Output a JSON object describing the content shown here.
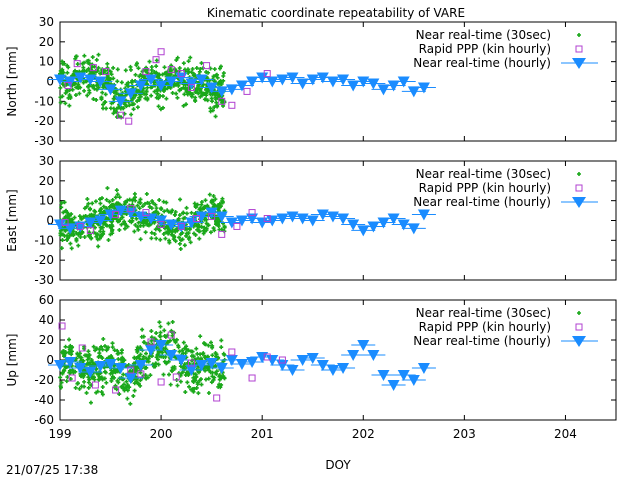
{
  "title": "Kinematic coordinate repeatability of VARE",
  "timestamp": "21/07/25 17:38",
  "colors": {
    "near30": "#1aa81a",
    "rapid": "#b040d0",
    "hourly": "#1a8cff"
  },
  "chart_data": [
    {
      "type": "scatter",
      "ylabel": "North [mm]",
      "xlim": [
        199,
        204.5
      ],
      "ylim": [
        -30,
        30
      ],
      "yticks": [
        -30,
        -20,
        -10,
        0,
        10,
        20,
        30
      ],
      "legend": "top-right",
      "series": [
        {
          "name": "Near real-time (30sec)",
          "spread": 10
        },
        {
          "name": "Rapid PPP (kin hourly)",
          "points": [
            [
              199.08,
              -2
            ],
            [
              199.17,
              9
            ],
            [
              199.33,
              7
            ],
            [
              199.45,
              5
            ],
            [
              199.6,
              -17
            ],
            [
              199.68,
              -20
            ],
            [
              199.85,
              5
            ],
            [
              199.95,
              11
            ],
            [
              200.0,
              15
            ],
            [
              200.1,
              6
            ],
            [
              200.2,
              4
            ],
            [
              200.3,
              -3
            ],
            [
              200.45,
              8
            ],
            [
              200.6,
              -10
            ],
            [
              200.7,
              -12
            ],
            [
              200.85,
              -5
            ],
            [
              201.05,
              4
            ]
          ]
        },
        {
          "name": "Near real-time (hourly)",
          "points": [
            [
              199.0,
              1
            ],
            [
              199.1,
              0
            ],
            [
              199.2,
              2
            ],
            [
              199.3,
              1
            ],
            [
              199.4,
              0
            ],
            [
              199.5,
              -4
            ],
            [
              199.6,
              -10
            ],
            [
              199.7,
              -6
            ],
            [
              199.8,
              -2
            ],
            [
              199.9,
              1
            ],
            [
              200.0,
              -2
            ],
            [
              200.1,
              0
            ],
            [
              200.2,
              2
            ],
            [
              200.3,
              -1
            ],
            [
              200.4,
              1
            ],
            [
              200.5,
              -3
            ],
            [
              200.6,
              -5
            ],
            [
              200.7,
              -4
            ],
            [
              200.8,
              -2
            ],
            [
              200.9,
              0
            ],
            [
              201.0,
              2
            ],
            [
              201.1,
              0
            ],
            [
              201.2,
              1
            ],
            [
              201.3,
              2
            ],
            [
              201.4,
              -1
            ],
            [
              201.5,
              1
            ],
            [
              201.6,
              2
            ],
            [
              201.7,
              0
            ],
            [
              201.8,
              1
            ],
            [
              201.9,
              -2
            ],
            [
              202.0,
              0
            ],
            [
              202.1,
              -1
            ],
            [
              202.2,
              -4
            ],
            [
              202.3,
              -2
            ],
            [
              202.4,
              0
            ],
            [
              202.5,
              -5
            ],
            [
              202.6,
              -3
            ]
          ]
        }
      ]
    },
    {
      "type": "scatter",
      "ylabel": "East [mm]",
      "xlim": [
        199,
        204.5
      ],
      "ylim": [
        -30,
        30
      ],
      "yticks": [
        -30,
        -20,
        -10,
        0,
        10,
        20,
        30
      ],
      "legend": "top-right",
      "series": [
        {
          "name": "Near real-time (30sec)",
          "spread": 9
        },
        {
          "name": "Rapid PPP (kin hourly)",
          "points": [
            [
              199.05,
              -1
            ],
            [
              199.2,
              -3
            ],
            [
              199.3,
              -5
            ],
            [
              199.55,
              3
            ],
            [
              199.7,
              6
            ],
            [
              199.85,
              4
            ],
            [
              200.0,
              -2
            ],
            [
              200.2,
              -3
            ],
            [
              200.35,
              1
            ],
            [
              200.5,
              2
            ],
            [
              200.6,
              -7
            ],
            [
              200.75,
              -3
            ],
            [
              200.9,
              4
            ],
            [
              201.05,
              1
            ]
          ]
        },
        {
          "name": "Near real-time (hourly)",
          "points": [
            [
              199.0,
              -2
            ],
            [
              199.1,
              -4
            ],
            [
              199.2,
              -3
            ],
            [
              199.3,
              -1
            ],
            [
              199.4,
              0
            ],
            [
              199.5,
              3
            ],
            [
              199.6,
              5
            ],
            [
              199.7,
              4
            ],
            [
              199.8,
              2
            ],
            [
              199.9,
              1
            ],
            [
              200.0,
              0
            ],
            [
              200.1,
              -2
            ],
            [
              200.2,
              -3
            ],
            [
              200.3,
              -1
            ],
            [
              200.4,
              2
            ],
            [
              200.5,
              4
            ],
            [
              200.6,
              2
            ],
            [
              200.7,
              -1
            ],
            [
              200.8,
              0
            ],
            [
              200.9,
              1
            ],
            [
              201.0,
              -1
            ],
            [
              201.1,
              0
            ],
            [
              201.2,
              1
            ],
            [
              201.3,
              2
            ],
            [
              201.4,
              1
            ],
            [
              201.5,
              0
            ],
            [
              201.6,
              3
            ],
            [
              201.7,
              2
            ],
            [
              201.8,
              1
            ],
            [
              201.9,
              -2
            ],
            [
              202.0,
              -5
            ],
            [
              202.1,
              -3
            ],
            [
              202.2,
              -1
            ],
            [
              202.3,
              1
            ],
            [
              202.4,
              -2
            ],
            [
              202.5,
              -4
            ],
            [
              202.6,
              3
            ]
          ]
        }
      ]
    },
    {
      "type": "scatter",
      "ylabel": "Up [mm]",
      "xlabel": "DOY",
      "xlim": [
        199,
        204.5
      ],
      "ylim": [
        -60,
        60
      ],
      "yticks": [
        -60,
        -40,
        -20,
        0,
        20,
        40,
        60
      ],
      "xticks": [
        199,
        200,
        201,
        202,
        203,
        204
      ],
      "legend": "top-right",
      "series": [
        {
          "name": "Near real-time (30sec)",
          "spread": 22
        },
        {
          "name": "Rapid PPP (kin hourly)",
          "points": [
            [
              199.02,
              34
            ],
            [
              199.12,
              -18
            ],
            [
              199.22,
              12
            ],
            [
              199.35,
              -25
            ],
            [
              199.55,
              -30
            ],
            [
              199.7,
              -10
            ],
            [
              199.8,
              -14
            ],
            [
              199.9,
              18
            ],
            [
              200.0,
              -22
            ],
            [
              200.1,
              25
            ],
            [
              200.15,
              -17
            ],
            [
              200.3,
              -3
            ],
            [
              200.55,
              -38
            ],
            [
              200.7,
              8
            ],
            [
              200.9,
              -18
            ],
            [
              201.05,
              3
            ],
            [
              201.2,
              0
            ]
          ]
        },
        {
          "name": "Near real-time (hourly)",
          "points": [
            [
              199.0,
              -5
            ],
            [
              199.1,
              -2
            ],
            [
              199.2,
              -8
            ],
            [
              199.3,
              -12
            ],
            [
              199.4,
              -6
            ],
            [
              199.5,
              -4
            ],
            [
              199.6,
              -8
            ],
            [
              199.7,
              -18
            ],
            [
              199.8,
              -5
            ],
            [
              199.9,
              10
            ],
            [
              200.0,
              15
            ],
            [
              200.1,
              5
            ],
            [
              200.2,
              0
            ],
            [
              200.3,
              -10
            ],
            [
              200.4,
              -5
            ],
            [
              200.5,
              -3
            ],
            [
              200.6,
              -8
            ],
            [
              200.7,
              0
            ],
            [
              200.8,
              -4
            ],
            [
              200.9,
              -2
            ],
            [
              201.0,
              3
            ],
            [
              201.1,
              0
            ],
            [
              201.2,
              -5
            ],
            [
              201.3,
              -10
            ],
            [
              201.4,
              0
            ],
            [
              201.5,
              2
            ],
            [
              201.6,
              -5
            ],
            [
              201.7,
              -10
            ],
            [
              201.8,
              -8
            ],
            [
              201.9,
              5
            ],
            [
              202.0,
              15
            ],
            [
              202.1,
              5
            ],
            [
              202.2,
              -15
            ],
            [
              202.3,
              -25
            ],
            [
              202.4,
              -15
            ],
            [
              202.5,
              -20
            ],
            [
              202.6,
              -8
            ]
          ]
        }
      ]
    }
  ]
}
